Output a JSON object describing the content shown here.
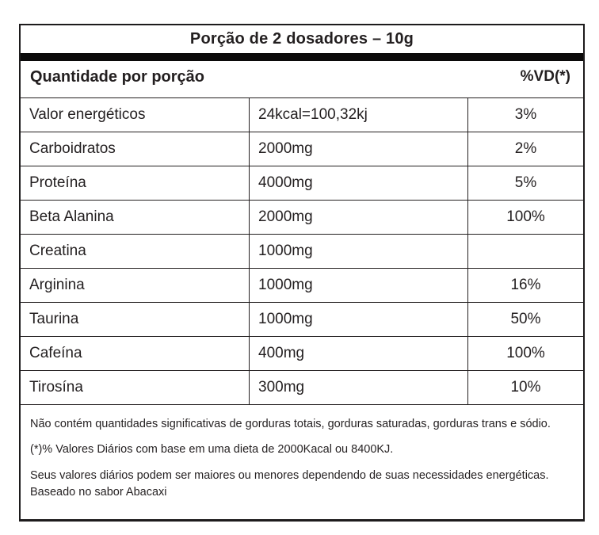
{
  "label": {
    "serving_title": "Porção de 2 dosadores – 10g",
    "column_header_left": "Quantidade por porção",
    "column_header_right": "%VD(*)",
    "rows": [
      {
        "name": "Valor energéticos",
        "amount": "24kcal=100,32kj",
        "vd": "3%"
      },
      {
        "name": "Carboidratos",
        "amount": "2000mg",
        "vd": "2%"
      },
      {
        "name": "Proteína",
        "amount": "4000mg",
        "vd": "5%"
      },
      {
        "name": "Beta Alanina",
        "amount": "2000mg",
        "vd": "100%"
      },
      {
        "name": "Creatina",
        "amount": "1000mg",
        "vd": ""
      },
      {
        "name": "Arginina",
        "amount": "1000mg",
        "vd": "16%"
      },
      {
        "name": "Taurina",
        "amount": "1000mg",
        "vd": "50%"
      },
      {
        "name": "Cafeína",
        "amount": "400mg",
        "vd": "100%"
      },
      {
        "name": "Tirosína",
        "amount": "300mg",
        "vd": "10%"
      }
    ],
    "footnotes": [
      "Não contém quantidades significativas de gorduras totais, gorduras saturadas, gorduras trans e sódio.",
      "(*)% Valores Diários com base em uma dieta de 2000Kacal ou 8400KJ.",
      "Seus valores diários podem ser maiores ou menores dependendo de suas necessidades energéticas.",
      "Baseado no sabor Abacaxi"
    ],
    "colors": {
      "text": "#231f20",
      "border": "#1d1b1c",
      "background": "#ffffff"
    }
  }
}
